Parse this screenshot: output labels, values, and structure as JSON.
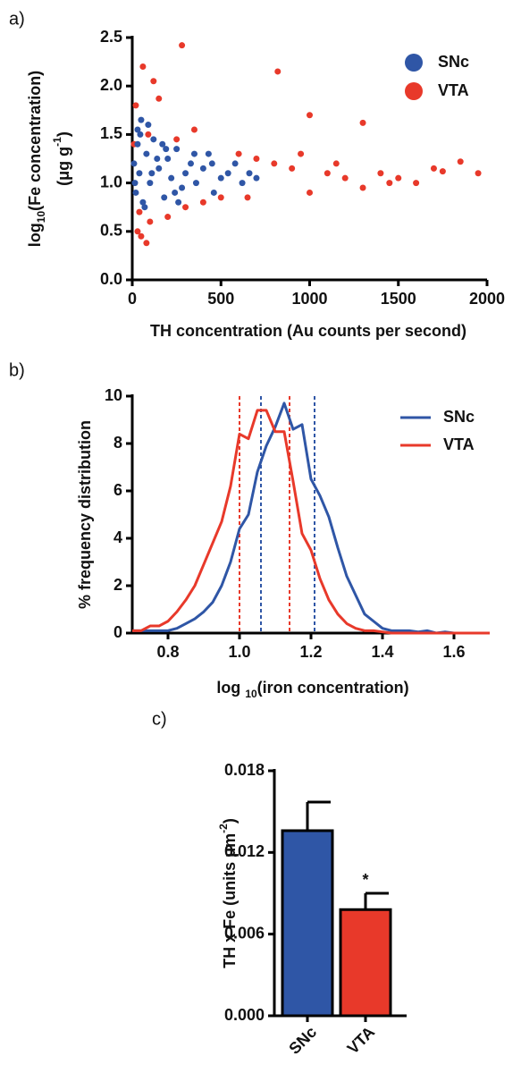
{
  "chart_data": [
    {
      "type": "scatter",
      "panel_label": "a)",
      "ylabel": [
        "log",
        "10",
        "(Fe concentration)"
      ],
      "ylabel2": [
        "(μg g",
        "-1",
        ")"
      ],
      "xlabel": "TH concentration (Au counts per second)",
      "xlim": [
        0,
        2000
      ],
      "xticks": [
        0,
        500,
        1000,
        1500,
        2000
      ],
      "ylim": [
        0,
        2.5
      ],
      "yticks": [
        {
          "value": 0,
          "label": "0.0"
        },
        {
          "value": 0.5,
          "label": "0.5"
        },
        {
          "value": 1,
          "label": "1.0"
        },
        {
          "value": 1.5,
          "label": "1.5"
        },
        {
          "value": 2,
          "label": "2.0"
        },
        {
          "value": 2.5,
          "label": "2.5"
        }
      ],
      "legend": "top-right",
      "series": [
        {
          "name": "VTA",
          "color": "#e8392a",
          "x": [
            280,
            60,
            820,
            120,
            150,
            20,
            1000,
            1300,
            1850,
            1950,
            1700,
            1500,
            30,
            50,
            80,
            100,
            40,
            200,
            300,
            400,
            500,
            600,
            700,
            800,
            900,
            1000,
            1100,
            1200,
            1300,
            1400,
            1600,
            1750,
            10,
            90,
            250,
            650,
            950,
            1150,
            1450,
            350
          ],
          "values": [
            2.42,
            2.2,
            2.15,
            2.05,
            1.87,
            1.8,
            1.7,
            1.62,
            1.22,
            1.1,
            1.15,
            1.05,
            0.5,
            0.45,
            0.38,
            0.6,
            0.7,
            0.65,
            0.75,
            0.8,
            0.85,
            1.3,
            1.25,
            1.2,
            1.15,
            0.9,
            1.1,
            1.05,
            0.95,
            1.1,
            1.0,
            1.12,
            1.4,
            1.5,
            1.45,
            0.85,
            1.3,
            1.2,
            1.0,
            1.55
          ]
        },
        {
          "name": "SNc",
          "color": "#2f56a6",
          "x": [
            10,
            20,
            30,
            40,
            50,
            60,
            80,
            100,
            120,
            150,
            180,
            200,
            220,
            250,
            280,
            300,
            330,
            360,
            400,
            430,
            460,
            500,
            540,
            580,
            620,
            660,
            700,
            30,
            70,
            90,
            140,
            190,
            260,
            350,
            450,
            15,
            45,
            110,
            170,
            240
          ],
          "values": [
            1.2,
            0.9,
            1.55,
            1.1,
            1.65,
            0.8,
            1.3,
            1.0,
            1.45,
            1.15,
            0.85,
            1.25,
            1.05,
            1.35,
            0.95,
            1.1,
            1.2,
            1.0,
            1.15,
            1.3,
            0.9,
            1.05,
            1.1,
            1.2,
            1.0,
            1.1,
            1.05,
            1.4,
            0.75,
            1.6,
            1.25,
            1.35,
            0.8,
            1.3,
            1.2,
            1.0,
            1.5,
            1.1,
            1.4,
            0.9
          ]
        }
      ]
    },
    {
      "type": "line",
      "panel_label": "b)",
      "ylabel": "% frequency distribution",
      "xlabel": [
        "log ",
        "10",
        "(iron concentration)"
      ],
      "xlim": [
        0.7,
        1.7
      ],
      "xticks": [
        0.8,
        {
          "value": 1,
          "label": "1.0"
        },
        1.2,
        1.4,
        1.6
      ],
      "ylim": [
        0,
        10
      ],
      "yticks": [
        0,
        2,
        4,
        6,
        8,
        10
      ],
      "legend": "top-right",
      "x": [
        0.7,
        0.725,
        0.75,
        0.775,
        0.8,
        0.825,
        0.85,
        0.875,
        0.9,
        0.925,
        0.95,
        0.975,
        1.0,
        1.025,
        1.05,
        1.075,
        1.1,
        1.125,
        1.15,
        1.175,
        1.2,
        1.225,
        1.25,
        1.275,
        1.3,
        1.325,
        1.35,
        1.375,
        1.4,
        1.425,
        1.45,
        1.475,
        1.5,
        1.525,
        1.55,
        1.575,
        1.6,
        1.625,
        1.65,
        1.675,
        1.7
      ],
      "series": [
        {
          "name": "SNc",
          "color": "#2f56a6",
          "values": [
            0.1,
            0.1,
            0.1,
            0.1,
            0.1,
            0.2,
            0.4,
            0.6,
            0.9,
            1.3,
            2.0,
            3.0,
            4.4,
            5.0,
            6.8,
            7.9,
            8.7,
            9.7,
            8.6,
            8.8,
            6.5,
            5.8,
            4.9,
            3.6,
            2.4,
            1.6,
            0.8,
            0.5,
            0.2,
            0.1,
            0.1,
            0.1,
            0.05,
            0.1,
            0,
            0.05,
            0,
            0,
            0,
            0,
            0
          ]
        },
        {
          "name": "VTA",
          "color": "#e8392a",
          "values": [
            0.1,
            0.1,
            0.3,
            0.3,
            0.5,
            0.9,
            1.4,
            2.0,
            2.9,
            3.8,
            4.7,
            6.2,
            8.4,
            8.2,
            9.4,
            9.4,
            8.5,
            8.5,
            6.4,
            4.2,
            3.5,
            2.3,
            1.4,
            0.8,
            0.4,
            0.2,
            0.1,
            0.1,
            0.05,
            0,
            0,
            0,
            0,
            0,
            0,
            0,
            0,
            0,
            0,
            0,
            0
          ]
        }
      ],
      "reference_lines": [
        {
          "value": 1.0,
          "color": "#e8392a"
        },
        {
          "value": 1.14,
          "color": "#e8392a"
        },
        {
          "value": 1.06,
          "color": "#2f56a6"
        },
        {
          "value": 1.21,
          "color": "#2f56a6"
        }
      ]
    },
    {
      "type": "bar",
      "panel_label": "c)",
      "ylabel": [
        "TH x Fe (units μm",
        "-2",
        ")"
      ],
      "categories": [
        "SNc",
        "VTA"
      ],
      "values": [
        0.0136,
        0.0078
      ],
      "errors": [
        0.0021,
        0.0012
      ],
      "colors": [
        "#2f56a6",
        "#e8392a"
      ],
      "annotations": [
        null,
        "*"
      ],
      "ylim": [
        0,
        0.018
      ],
      "yticks": [
        {
          "value": 0,
          "label": "0.000"
        },
        {
          "value": 0.006,
          "label": "0.006"
        },
        {
          "value": 0.012,
          "label": "0.012"
        },
        {
          "value": 0.018,
          "label": "0.018"
        }
      ]
    }
  ]
}
